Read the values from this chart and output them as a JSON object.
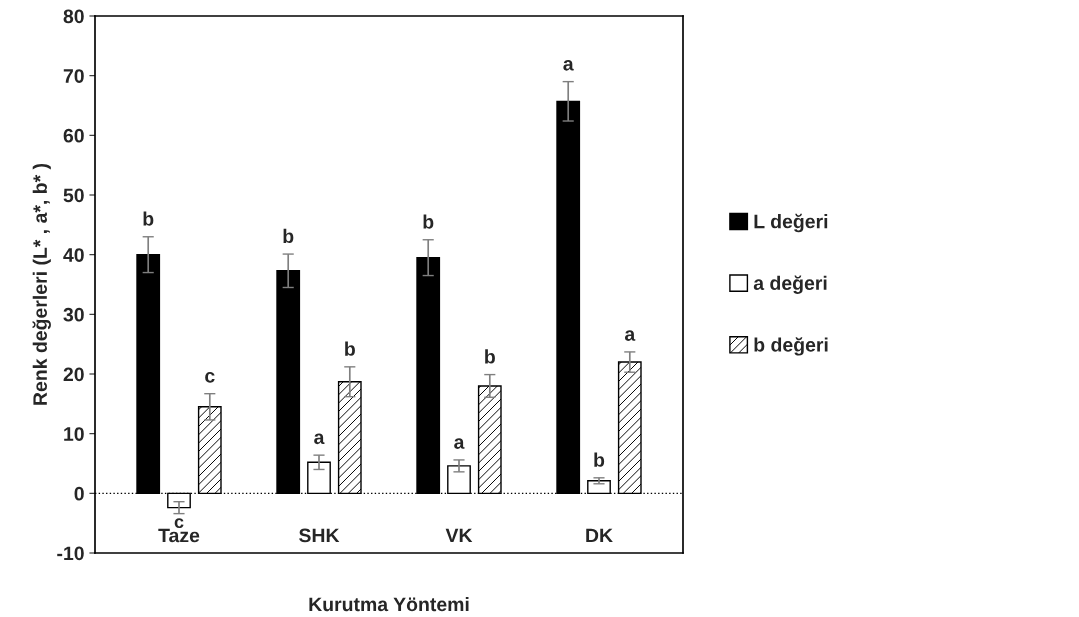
{
  "chart_data": {
    "type": "bar",
    "xlabel": "Kurutma Yöntemi",
    "ylabel": "Renk değerleri (L* , a*, b* )",
    "categories": [
      "Taze",
      "SHK",
      "VK",
      "DK"
    ],
    "series": [
      {
        "name": "L değeri",
        "color": "#000000",
        "values": [
          40.0,
          37.3,
          39.5,
          65.7
        ],
        "errors": [
          3.0,
          2.8,
          3.0,
          3.3
        ],
        "value_labels": [
          "b",
          "b",
          "b",
          "a"
        ]
      },
      {
        "name": "a değeri",
        "color": "#ffffff",
        "values": [
          -2.4,
          5.2,
          4.6,
          2.1
        ],
        "errors": [
          1.0,
          1.2,
          1.0,
          0.5
        ],
        "value_labels": [
          "c",
          "a",
          "a",
          "b"
        ]
      },
      {
        "name": "b değeri",
        "color": "#000000",
        "values": [
          14.5,
          18.7,
          18.0,
          22.0
        ],
        "errors": [
          2.2,
          2.5,
          1.9,
          1.7
        ],
        "value_labels": [
          "c",
          "b",
          "b",
          "a"
        ]
      }
    ],
    "ylim": [
      -10,
      80
    ],
    "yticks": [
      -10,
      0,
      10,
      20,
      30,
      40,
      50,
      60,
      70,
      80
    ],
    "ref_lines": [
      {
        "axis": "y",
        "value": 0,
        "line_style": "dotted",
        "color": "#000000"
      }
    ],
    "grid": false,
    "legend": "right"
  }
}
